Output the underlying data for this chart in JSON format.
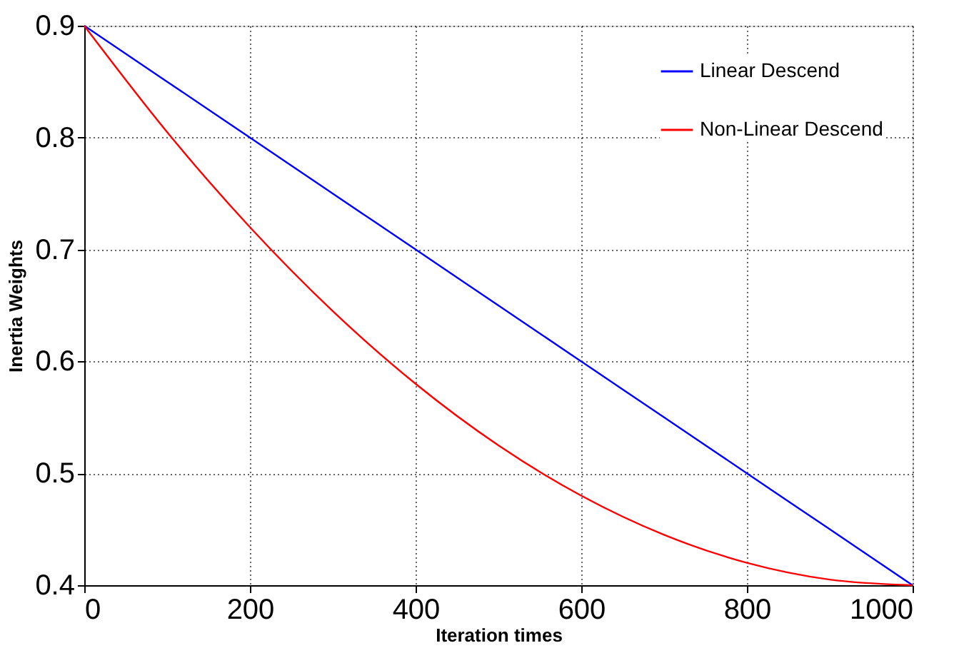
{
  "chart_data": {
    "type": "line",
    "xlabel": "Iteration times",
    "ylabel": "Inertia Weights",
    "x": [
      0,
      100,
      200,
      300,
      400,
      500,
      600,
      700,
      800,
      900,
      1000
    ],
    "series": [
      {
        "name": "Linear Descend",
        "color": "#0000ff",
        "values": [
          0.9,
          0.85,
          0.8,
          0.75,
          0.7,
          0.65,
          0.6,
          0.55,
          0.5,
          0.45,
          0.4
        ]
      },
      {
        "name": "Non-Linear Descend",
        "color": "#ff0000",
        "values": [
          0.9,
          0.805,
          0.72,
          0.645,
          0.58,
          0.525,
          0.48,
          0.445,
          0.42,
          0.405,
          0.4
        ]
      }
    ],
    "xlim": [
      0,
      1000
    ],
    "xticks": [
      0,
      200,
      400,
      600,
      800,
      1000
    ],
    "ylim": [
      0.4,
      0.9
    ],
    "yticks": [
      0.4,
      0.5,
      0.6,
      0.7,
      0.8,
      0.9
    ],
    "grid": true,
    "legend": "top right",
    "line_style": "solid",
    "marker": "none"
  }
}
